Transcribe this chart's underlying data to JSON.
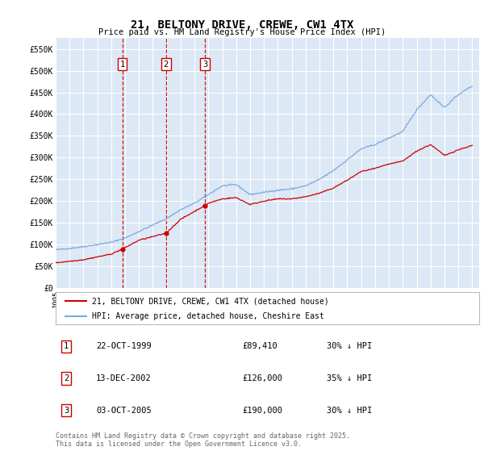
{
  "title": "21, BELTONY DRIVE, CREWE, CW1 4TX",
  "subtitle": "Price paid vs. HM Land Registry's House Price Index (HPI)",
  "ylim": [
    0,
    575000
  ],
  "yticks": [
    0,
    50000,
    100000,
    150000,
    200000,
    250000,
    300000,
    350000,
    400000,
    450000,
    500000,
    550000
  ],
  "ytick_labels": [
    "£0",
    "£50K",
    "£100K",
    "£150K",
    "£200K",
    "£250K",
    "£300K",
    "£350K",
    "£400K",
    "£450K",
    "£500K",
    "£550K"
  ],
  "xlim_start": 1995.0,
  "xlim_end": 2025.5,
  "background_color": "#ffffff",
  "plot_background": "#dce8f5",
  "grid_color": "#ffffff",
  "transactions": [
    {
      "num": 1,
      "date": "22-OCT-1999",
      "price": 89410,
      "year": 1999.8,
      "hpi_pct": "30% ↓ HPI"
    },
    {
      "num": 2,
      "date": "13-DEC-2002",
      "price": 126000,
      "year": 2002.95,
      "hpi_pct": "35% ↓ HPI"
    },
    {
      "num": 3,
      "date": "03-OCT-2005",
      "price": 190000,
      "year": 2005.75,
      "hpi_pct": "30% ↓ HPI"
    }
  ],
  "red_line_color": "#cc0000",
  "blue_line_color": "#7aaadd",
  "vline_color": "#cc0000",
  "legend_label_red": "21, BELTONY DRIVE, CREWE, CW1 4TX (detached house)",
  "legend_label_blue": "HPI: Average price, detached house, Cheshire East",
  "footer": "Contains HM Land Registry data © Crown copyright and database right 2025.\nThis data is licensed under the Open Government Licence v3.0.",
  "hpi_anchors_x": [
    1995,
    1996,
    1997,
    1998,
    1999,
    2000,
    2001,
    2002,
    2003,
    2004,
    2005,
    2006,
    2007,
    2008,
    2009,
    2010,
    2011,
    2012,
    2013,
    2014,
    2015,
    2016,
    2017,
    2018,
    2019,
    2020,
    2021,
    2022,
    2023,
    2024,
    2025
  ],
  "hpi_anchors_y": [
    88000,
    91000,
    95000,
    100000,
    105000,
    115000,
    130000,
    145000,
    160000,
    180000,
    195000,
    215000,
    235000,
    238000,
    215000,
    220000,
    225000,
    228000,
    235000,
    250000,
    270000,
    295000,
    320000,
    330000,
    345000,
    360000,
    410000,
    445000,
    415000,
    445000,
    465000
  ],
  "red_anchors_x": [
    1995,
    1997,
    1999,
    1999.8,
    2001,
    2002.95,
    2004,
    2005.75,
    2006,
    2007,
    2008,
    2009,
    2010,
    2011,
    2012,
    2013,
    2014,
    2015,
    2016,
    2017,
    2018,
    2019,
    2020,
    2021,
    2022,
    2023,
    2024,
    2025
  ],
  "red_anchors_y": [
    58000,
    65000,
    78000,
    89410,
    110000,
    126000,
    158000,
    190000,
    195000,
    205000,
    208000,
    192000,
    200000,
    205000,
    205000,
    210000,
    218000,
    230000,
    248000,
    268000,
    275000,
    285000,
    292000,
    315000,
    330000,
    305000,
    318000,
    328000
  ]
}
